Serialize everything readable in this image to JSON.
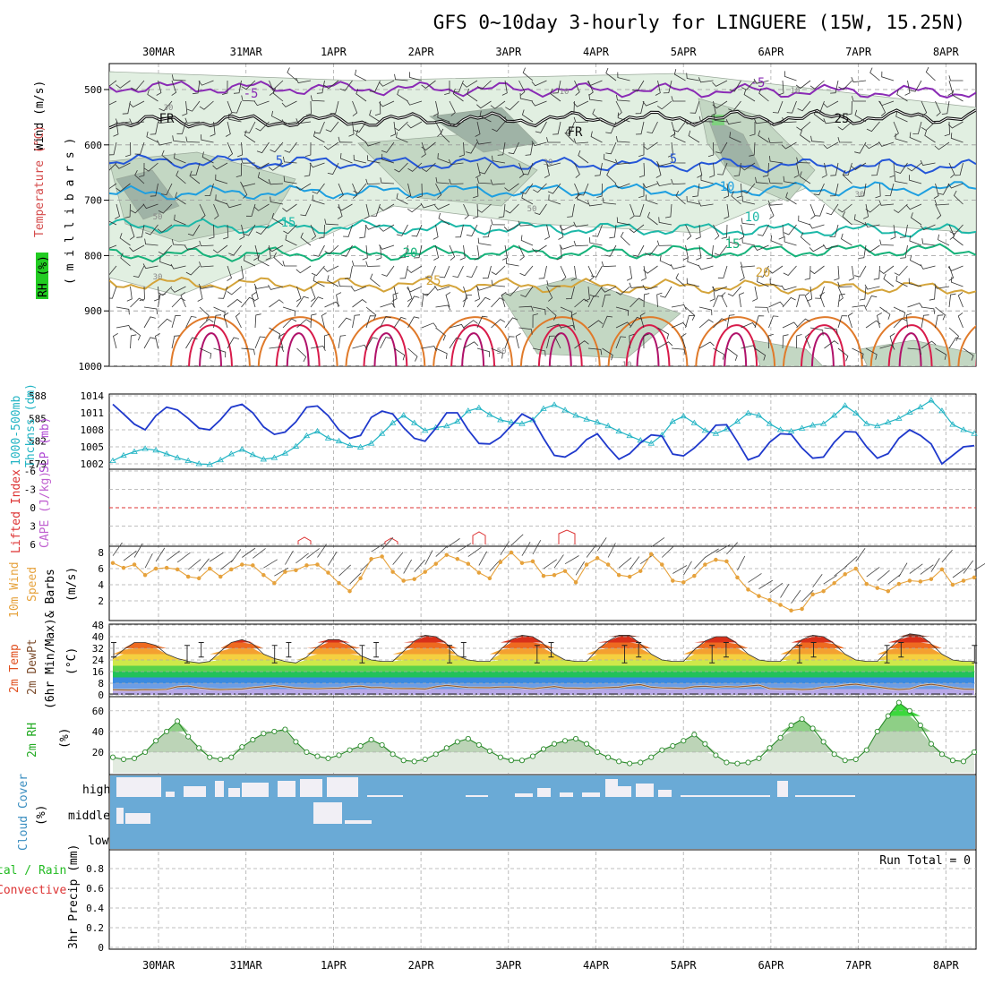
{
  "title": "GFS 0~10day 3-hourly for LINGUERE (15W, 15.25N)",
  "dates": [
    "30MAR",
    "31MAR",
    "1APR",
    "2APR",
    "3APR",
    "4APR",
    "5APR",
    "6APR",
    "7APR",
    "8APR"
  ],
  "colors": {
    "rh_light": "#e1efe1",
    "rh_mid": "#c3d7c3",
    "rh_dark": "#9fb3a6",
    "cloud_bg": "#6aaad6",
    "cloud_fill": "#f1eff5",
    "slp": "#1f39cc",
    "thickness": "#22b4c4",
    "wind10m": "#e6a23c",
    "lifted_index": "#dd3333",
    "rh2m_line": "#2a8a2a"
  },
  "panel_labels": {
    "top": {
      "wind": "Wind (m/s)",
      "temperature": "Temperature (°C)",
      "rh": "RH (%)",
      "millibars": "( m i l l i b a r s )"
    },
    "pressure": {
      "thickness": "1000-500mb",
      "thickness2": "Thcknss (dm)",
      "slp": "SLP (mb)"
    },
    "cape": {
      "lifted": "Lifted Index",
      "cape": "CAPE (J/kg)"
    },
    "wind10": {
      "a": "10m Wind",
      "b": "Speed",
      "c": "& Barbs",
      "units": "(m/s)"
    },
    "temp2m": {
      "a": "2m Temp",
      "b": "2m DewPt",
      "c": "(6hr Min/Max)",
      "units": "(°C)"
    },
    "rh2m": {
      "a": "2m RH",
      "units": "(%)"
    },
    "cloud": {
      "a": "Cloud Cover",
      "units": "(%)",
      "high": "high",
      "middle": "middle",
      "low": "low"
    },
    "precip": {
      "a": "tal / Rain",
      "b": "Convective",
      "c": "3hr Precip (mm)",
      "run_total": "Run Total = 0"
    }
  },
  "axes": {
    "pressure_mb": [
      "500",
      "600",
      "700",
      "800",
      "900",
      "1000"
    ],
    "thickness_ticks": [
      "588",
      "585",
      "582",
      "579"
    ],
    "slp_ticks": [
      "1014",
      "1011",
      "1008",
      "1005",
      "1002"
    ],
    "lifted_ticks": [
      "-6",
      "-3",
      "0",
      "3",
      "6"
    ],
    "wind10_ticks": [
      "8",
      "6",
      "4",
      "2"
    ],
    "temp_ticks": [
      "48",
      "40",
      "32",
      "24",
      "16",
      "8",
      "0"
    ],
    "rh_ticks": [
      "60",
      "40",
      "20"
    ],
    "precip_ticks": [
      "0.8",
      "0.6",
      "0.4",
      "0.2",
      "0"
    ]
  },
  "isotherm_labels": [
    "-5",
    "5",
    "10",
    "15",
    "20",
    "25",
    "FR",
    "-5",
    "5",
    "10",
    "15",
    "20",
    "25",
    "FR"
  ],
  "rh_contour_labels": [
    "10",
    "30",
    "50",
    "30",
    "50",
    "10",
    "30",
    "30",
    "50",
    "10"
  ],
  "chart_data": {
    "type": "line",
    "x_unit": "3-hourly steps (81 steps, 0-240 h)",
    "series": [
      {
        "name": "SLP",
        "unit": "mb",
        "values": [
          1012.5,
          1010.8,
          1009.0,
          1008.0,
          1010.5,
          1012.0,
          1011.5,
          1010.0,
          1008.3,
          1008.0,
          1009.8,
          1012.0,
          1012.5,
          1011.0,
          1008.5,
          1007.2,
          1007.6,
          1009.4,
          1012.0,
          1012.2,
          1010.5,
          1008.0,
          1006.5,
          1007.0,
          1010.2,
          1011.3,
          1010.8,
          1008.4,
          1006.5,
          1006.0,
          1008.3,
          1011.0,
          1011.0,
          1008.0,
          1005.6,
          1005.5,
          1006.7,
          1008.7,
          1010.8,
          1009.8,
          1006.5,
          1003.5,
          1003.2,
          1004.3,
          1006.3,
          1007.3,
          1004.9,
          1002.8,
          1003.8,
          1005.7,
          1007.1,
          1006.9,
          1003.7,
          1003.4,
          1004.8,
          1006.6,
          1008.8,
          1008.9,
          1005.9,
          1002.7,
          1003.4,
          1005.8,
          1007.3,
          1007.2,
          1004.8,
          1003.0,
          1003.2,
          1005.8,
          1007.7,
          1007.6,
          1005.0,
          1003.0,
          1003.8,
          1006.5,
          1008.0,
          1007.0,
          1005.5,
          1002.0,
          1003.5,
          1005.0,
          1005.2
        ]
      },
      {
        "name": "1000-500mb Thickness",
        "unit": "dm",
        "values": [
          579.4,
          580.1,
          580.6,
          581.0,
          580.8,
          580.3,
          579.8,
          579.4,
          579.0,
          578.9,
          579.5,
          580.3,
          580.9,
          580.2,
          579.6,
          579.8,
          580.4,
          581.3,
          582.7,
          583.3,
          582.4,
          582.0,
          581.4,
          581.2,
          581.7,
          583.0,
          584.4,
          585.4,
          584.4,
          583.4,
          583.8,
          584.0,
          584.6,
          586.0,
          586.4,
          585.5,
          584.8,
          584.5,
          584.3,
          584.8,
          586.3,
          586.8,
          586.1,
          585.4,
          584.9,
          584.5,
          584.0,
          583.3,
          582.7,
          582.1,
          581.7,
          582.8,
          584.6,
          585.3,
          584.4,
          583.4,
          583.0,
          583.6,
          584.6,
          585.7,
          585.4,
          584.3,
          583.5,
          583.3,
          583.7,
          584.1,
          584.3,
          585.4,
          586.7,
          585.7,
          584.3,
          584.0,
          584.5,
          585.0,
          585.8,
          586.5,
          587.4,
          586.0,
          584.2,
          583.5,
          583.0
        ]
      },
      {
        "name": "10m Wind Speed",
        "unit": "m/s",
        "values": [
          6.7,
          6.1,
          6.5,
          5.2,
          6.0,
          6.1,
          5.9,
          5.0,
          4.8,
          6.0,
          5.0,
          5.9,
          6.5,
          6.4,
          5.2,
          4.2,
          5.6,
          5.8,
          6.4,
          6.5,
          5.5,
          4.2,
          3.2,
          4.8,
          7.2,
          7.5,
          5.6,
          4.5,
          4.7,
          5.6,
          6.6,
          7.7,
          7.2,
          6.6,
          5.5,
          4.8,
          6.8,
          8.0,
          6.7,
          6.9,
          5.1,
          5.2,
          5.7,
          4.3,
          6.5,
          7.3,
          6.5,
          5.2,
          5.0,
          5.7,
          7.8,
          6.5,
          4.5,
          4.3,
          5.1,
          6.5,
          7.1,
          6.9,
          4.9,
          3.4,
          2.6,
          2.1,
          1.5,
          0.8,
          1.0,
          2.8,
          3.2,
          4.2,
          5.3,
          6.0,
          4.1,
          3.6,
          3.2,
          4.1,
          4.5,
          4.4,
          4.7,
          5.9,
          4.0,
          4.5,
          4.9
        ]
      },
      {
        "name": "2m Temp",
        "unit": "°C",
        "values": [
          25,
          31,
          36,
          36,
          34,
          28,
          25,
          23,
          22,
          23,
          30,
          36,
          38,
          35,
          28,
          25,
          23,
          22,
          26,
          33,
          38,
          38,
          34,
          27,
          24,
          23,
          23,
          30,
          37,
          41,
          40,
          35,
          27,
          24,
          23,
          23,
          31,
          38,
          41,
          40,
          35,
          28,
          24,
          23,
          23,
          31,
          37,
          41,
          41,
          35,
          28,
          24,
          23,
          23,
          31,
          37,
          40,
          40,
          35,
          28,
          24,
          23,
          23,
          31,
          38,
          41,
          40,
          35,
          28,
          24,
          23,
          23,
          31,
          38,
          42,
          41,
          35,
          28,
          24,
          23,
          23
        ]
      },
      {
        "name": "2m DewPt",
        "unit": "°C",
        "values": [
          3.5,
          3.4,
          3.3,
          3.6,
          3.5,
          3.8,
          5.6,
          6.1,
          4.8,
          4.0,
          3.6,
          3.9,
          4.0,
          5.0,
          5.6,
          6.4,
          5.6,
          4.7,
          4.4,
          4.2,
          4.5,
          4.6,
          5.6,
          6.1,
          5.0,
          5.1,
          4.4,
          4.3,
          4.4,
          4.0,
          5.6,
          6.6,
          5.8,
          5.1,
          5.0,
          4.9,
          5.4,
          5.5,
          4.8,
          4.2,
          5.0,
          5.8,
          4.7,
          4.6,
          4.3,
          4.8,
          5.0,
          5.3,
          6.5,
          7.1,
          5.3,
          4.8,
          4.6,
          4.4,
          5.6,
          6.0,
          5.3,
          5.7,
          5.5,
          6.1,
          6.7,
          4.3,
          4.0,
          4.1,
          3.6,
          4.0,
          5.4,
          5.7,
          6.8,
          7.4,
          6.3,
          5.5,
          4.4,
          3.7,
          4.2,
          6.4,
          7.3,
          6.3,
          5.0,
          4.0,
          3.8
        ]
      },
      {
        "name": "2m RH",
        "unit": "%",
        "values": [
          15,
          13,
          14,
          20,
          31,
          40,
          50,
          35,
          24,
          15,
          13,
          15,
          25,
          32,
          38,
          40,
          42,
          30,
          20,
          16,
          14,
          17,
          22,
          26,
          32,
          27,
          18,
          12,
          11,
          13,
          18,
          24,
          30,
          33,
          27,
          21,
          15,
          12,
          12,
          16,
          23,
          28,
          31,
          33,
          28,
          20,
          15,
          11,
          9,
          10,
          15,
          22,
          26,
          31,
          37,
          28,
          17,
          10,
          9,
          10,
          14,
          24,
          34,
          46,
          52,
          43,
          30,
          18,
          12,
          13,
          22,
          40,
          55,
          68,
          60,
          46,
          28,
          18,
          12,
          11,
          20
        ]
      }
    ],
    "panels": [
      "Wind / Temperature / RH cross-section (500-1000 mb)",
      "SLP & Thickness",
      "Lifted Index / CAPE",
      "10m Wind Speed & Barbs",
      "2m Temp / DewPt",
      "2m RH",
      "Cloud Cover",
      "3hr Precip"
    ],
    "precip_run_total": "0"
  }
}
